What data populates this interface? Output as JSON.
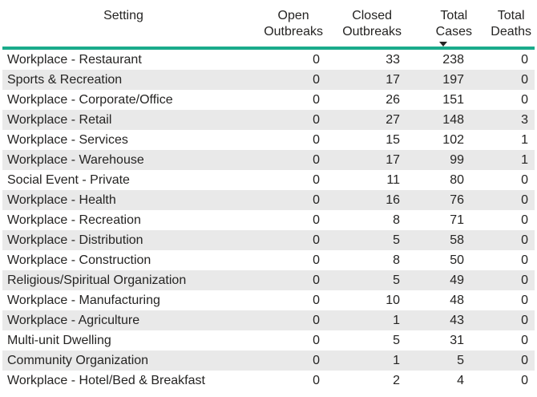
{
  "table": {
    "headers": {
      "setting": "Setting",
      "open": [
        "Open",
        "Outbreaks"
      ],
      "closed": [
        "Closed",
        "Outbreaks"
      ],
      "total_cases": [
        "Total",
        "Cases"
      ],
      "total_deaths": [
        "Total",
        "Deaths"
      ],
      "sorted_column": "total_cases",
      "sort_direction": "descending"
    },
    "accent_color": "#1aab8b",
    "rows": [
      {
        "setting": "Workplace - Restaurant",
        "open": "0",
        "closed": "33",
        "total_cases": "238",
        "total_deaths": "0"
      },
      {
        "setting": "Sports & Recreation",
        "open": "0",
        "closed": "17",
        "total_cases": "197",
        "total_deaths": "0"
      },
      {
        "setting": "Workplace - Corporate/Office",
        "open": "0",
        "closed": "26",
        "total_cases": "151",
        "total_deaths": "0"
      },
      {
        "setting": "Workplace - Retail",
        "open": "0",
        "closed": "27",
        "total_cases": "148",
        "total_deaths": "3"
      },
      {
        "setting": "Workplace - Services",
        "open": "0",
        "closed": "15",
        "total_cases": "102",
        "total_deaths": "1"
      },
      {
        "setting": "Workplace - Warehouse",
        "open": "0",
        "closed": "17",
        "total_cases": "99",
        "total_deaths": "1"
      },
      {
        "setting": "Social Event - Private",
        "open": "0",
        "closed": "11",
        "total_cases": "80",
        "total_deaths": "0"
      },
      {
        "setting": "Workplace - Health",
        "open": "0",
        "closed": "16",
        "total_cases": "76",
        "total_deaths": "0"
      },
      {
        "setting": "Workplace - Recreation",
        "open": "0",
        "closed": "8",
        "total_cases": "71",
        "total_deaths": "0"
      },
      {
        "setting": "Workplace - Distribution",
        "open": "0",
        "closed": "5",
        "total_cases": "58",
        "total_deaths": "0"
      },
      {
        "setting": "Workplace - Construction",
        "open": "0",
        "closed": "8",
        "total_cases": "50",
        "total_deaths": "0"
      },
      {
        "setting": "Religious/Spiritual Organization",
        "open": "0",
        "closed": "5",
        "total_cases": "49",
        "total_deaths": "0"
      },
      {
        "setting": "Workplace - Manufacturing",
        "open": "0",
        "closed": "10",
        "total_cases": "48",
        "total_deaths": "0"
      },
      {
        "setting": "Workplace - Agriculture",
        "open": "0",
        "closed": "1",
        "total_cases": "43",
        "total_deaths": "0"
      },
      {
        "setting": "Multi-unit Dwelling",
        "open": "0",
        "closed": "5",
        "total_cases": "31",
        "total_deaths": "0"
      },
      {
        "setting": "Community Organization",
        "open": "0",
        "closed": "1",
        "total_cases": "5",
        "total_deaths": "0"
      },
      {
        "setting": "Workplace - Hotel/Bed & Breakfast",
        "open": "0",
        "closed": "2",
        "total_cases": "4",
        "total_deaths": "0"
      }
    ]
  }
}
